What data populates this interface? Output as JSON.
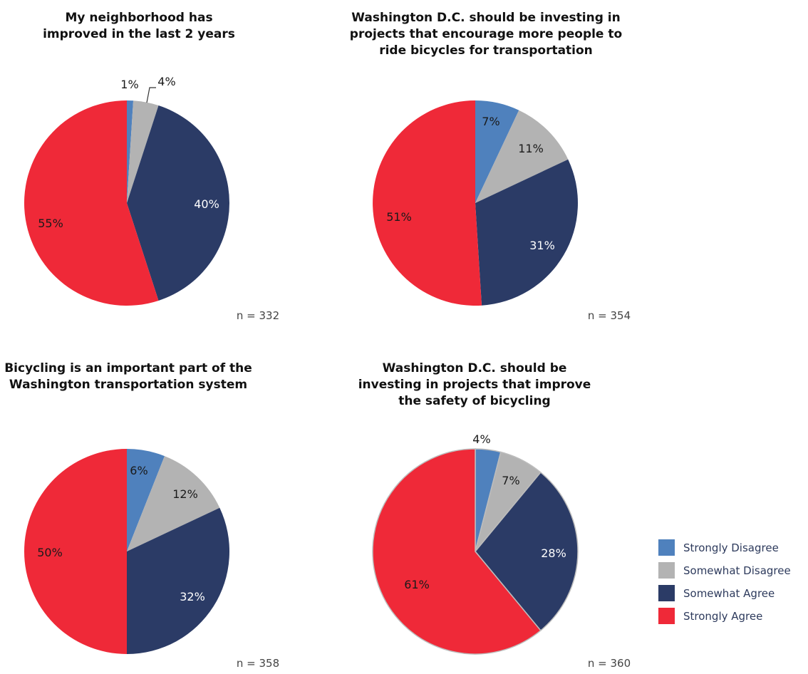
{
  "colors": {
    "strongly_disagree": "#4f81bd",
    "somewhat_disagree": "#b3b3b3",
    "somewhat_agree": "#2b3b66",
    "strongly_agree": "#ef2938"
  },
  "legend": [
    "Strongly Disagree",
    "Somewhat Disagree",
    "Somewhat Agree",
    "Strongly Agree"
  ],
  "chart_data": [
    {
      "type": "pie",
      "title": "My neighborhood has improved in the last 2 years",
      "n_label": "n = 332",
      "categories": [
        "Strongly Disagree",
        "Somewhat Disagree",
        "Somewhat Agree",
        "Strongly Agree"
      ],
      "values": [
        1,
        4,
        40,
        55
      ],
      "labels": [
        "1%",
        "4%",
        "40%",
        "55%"
      ]
    },
    {
      "type": "pie",
      "title": "Washington D.C. should be investing in projects that encourage more people to ride bicycles for transportation",
      "n_label": "n = 354",
      "categories": [
        "Strongly Disagree",
        "Somewhat Disagree",
        "Somewhat Agree",
        "Strongly Agree"
      ],
      "values": [
        7,
        11,
        31,
        51
      ],
      "labels": [
        "7%",
        "11%",
        "31%",
        "51%"
      ]
    },
    {
      "type": "pie",
      "title": "Bicycling is an important part of the Washington transportation system",
      "n_label": "n = 358",
      "categories": [
        "Strongly Disagree",
        "Somewhat Disagree",
        "Somewhat Agree",
        "Strongly Agree"
      ],
      "values": [
        6,
        12,
        32,
        50
      ],
      "labels": [
        "6%",
        "12%",
        "32%",
        "50%"
      ]
    },
    {
      "type": "pie",
      "title": "Washington D.C. should be investing in projects that improve the safety of bicycling",
      "n_label": "n = 360",
      "categories": [
        "Strongly Disagree",
        "Somewhat Disagree",
        "Somewhat Agree",
        "Strongly Agree"
      ],
      "values": [
        4,
        7,
        28,
        61
      ],
      "labels": [
        "4%",
        "7%",
        "28%",
        "61%"
      ]
    }
  ]
}
